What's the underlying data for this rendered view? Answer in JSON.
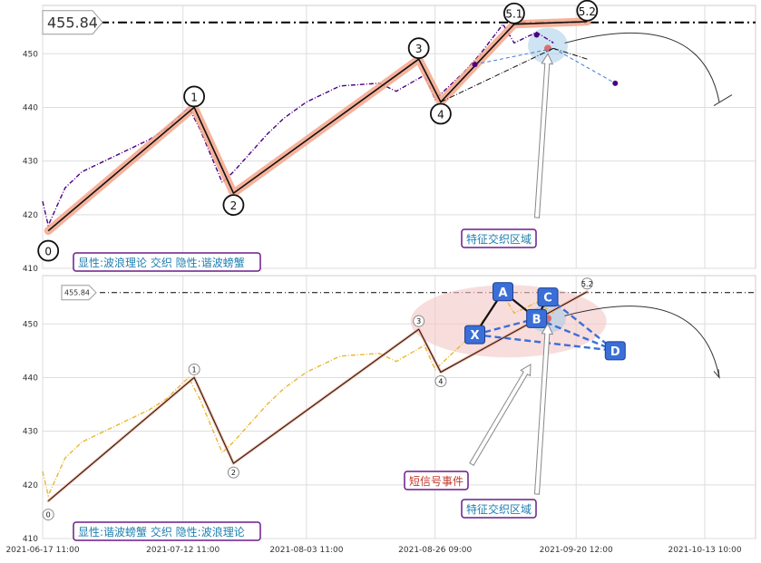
{
  "chart_data": [
    {
      "type": "line",
      "panel": "top",
      "ylim": [
        410,
        459
      ],
      "yticks": [
        410,
        420,
        430,
        440,
        450
      ],
      "price_marker": "455.84",
      "series": [
        {
          "name": "",
          "color": "#4b0082",
          "style": "dash-dot",
          "x": [
            "2021-06-17 11:00",
            "2021-06-18 11:00",
            "2021-06-21 11:00",
            "2021-06-24 11:00",
            "2021-06-30 11:00",
            "2021-07-06 11:00",
            "2021-07-09 11:00",
            "2021-07-13 11:00",
            "2021-07-15 11:00",
            "2021-07-19 11:00",
            "2021-07-21 11:00",
            "2021-07-27 11:00",
            "2021-07-30 11:00",
            "2021-08-03 11:00",
            "2021-08-09 11:00",
            "2021-08-16 11:00",
            "2021-08-19 11:00",
            "2021-08-24 11:00",
            "2021-08-26 09:00",
            "2021-08-31 11:00",
            "2021-09-03 11:00",
            "2021-09-07 11:00",
            "2021-09-09 11:00",
            "2021-09-13 11:00",
            "2021-09-16 11:00"
          ],
          "y": [
            422.5,
            418,
            425,
            428,
            431,
            434,
            436,
            440,
            436,
            426,
            428,
            435,
            438,
            441,
            444,
            444.5,
            443,
            446,
            441.5,
            446.5,
            450,
            455.5,
            452,
            454,
            452
          ]
        }
      ],
      "wave_points": [
        {
          "label": "0",
          "x": "2021-06-18 11:00",
          "y": 417
        },
        {
          "label": "1",
          "x": "2021-07-14 11:00",
          "y": 440
        },
        {
          "label": "2",
          "x": "2021-07-21 11:00",
          "y": 424
        },
        {
          "label": "3",
          "x": "2021-08-23 11:00",
          "y": 449
        },
        {
          "label": "4",
          "x": "2021-08-27 09:00",
          "y": 441
        },
        {
          "label": "5.1",
          "x": "2021-09-09 11:00",
          "y": 455.5
        },
        {
          "label": "5.2",
          "x": "2021-09-22 11:00",
          "y": 456
        }
      ],
      "projection": {
        "x": [
          "2021-09-16 11:00",
          "2021-09-27 11:00"
        ],
        "y": [
          451,
          444.5
        ]
      },
      "annotations": [
        "特征交织区域"
      ],
      "info_label": "显性:波浪理论 交织 隐性:谐波螃蟹"
    },
    {
      "type": "line",
      "panel": "bottom",
      "ylim": [
        410,
        459
      ],
      "yticks": [
        410,
        420,
        430,
        440,
        450
      ],
      "price_marker": "455.84",
      "series": [
        {
          "name": "",
          "color": "#e8b830",
          "style": "dash-dot",
          "x": [
            "2021-06-17 11:00",
            "2021-06-18 11:00",
            "2021-06-21 11:00",
            "2021-06-24 11:00",
            "2021-06-30 11:00",
            "2021-07-06 11:00",
            "2021-07-09 11:00",
            "2021-07-13 11:00",
            "2021-07-15 11:00",
            "2021-07-19 11:00",
            "2021-07-21 11:00",
            "2021-07-27 11:00",
            "2021-07-30 11:00",
            "2021-08-03 11:00",
            "2021-08-09 11:00",
            "2021-08-16 11:00",
            "2021-08-19 11:00",
            "2021-08-24 11:00",
            "2021-08-26 09:00",
            "2021-08-31 11:00",
            "2021-09-03 11:00",
            "2021-09-07 11:00",
            "2021-09-09 11:00",
            "2021-09-13 11:00",
            "2021-09-16 11:00"
          ],
          "y": [
            422.5,
            418,
            425,
            428,
            431,
            434,
            436,
            440,
            436,
            426,
            428,
            435,
            438,
            441,
            444,
            444.5,
            443,
            446,
            441.5,
            446.5,
            450,
            455.5,
            452,
            454,
            452
          ]
        }
      ],
      "wave_points": [
        {
          "label": "0",
          "x": "2021-06-18 11:00",
          "y": 417
        },
        {
          "label": "1",
          "x": "2021-07-14 11:00",
          "y": 440
        },
        {
          "label": "2",
          "x": "2021-07-21 11:00",
          "y": 424
        },
        {
          "label": "3",
          "x": "2021-08-23 11:00",
          "y": 449
        },
        {
          "label": "4",
          "x": "2021-08-27 09:00",
          "y": 441
        },
        {
          "label": "5.2",
          "x": "2021-09-22 11:00",
          "y": 456
        }
      ],
      "harmonic_points": [
        {
          "label": "X",
          "x": "2021-09-02 11:00",
          "y": 448
        },
        {
          "label": "A",
          "x": "2021-09-07 11:00",
          "y": 456
        },
        {
          "label": "B",
          "x": "2021-09-13 11:00",
          "y": 451
        },
        {
          "label": "C",
          "x": "2021-09-15 11:00",
          "y": 455
        },
        {
          "label": "D",
          "x": "2021-09-27 11:00",
          "y": 445
        }
      ],
      "annotations": [
        "短信号事件",
        "特征交织区域"
      ],
      "info_label": "显性:谐波螃蟹 交织 隐性:波浪理论"
    }
  ],
  "x_axis": {
    "ticks": [
      "2021-06-17 11:00",
      "2021-07-12 11:00",
      "2021-08-03 11:00",
      "2021-08-26 09:00",
      "2021-09-20 12:00",
      "2021-10-13 10:00"
    ]
  }
}
